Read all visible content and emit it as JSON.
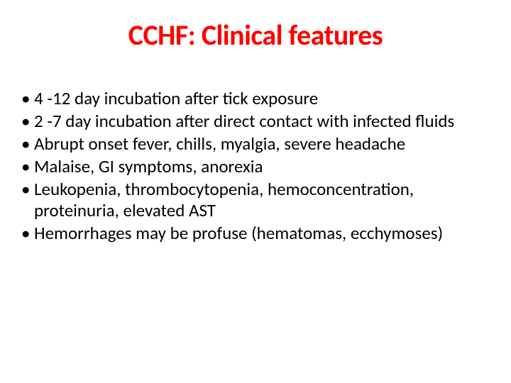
{
  "slide": {
    "title": "CCHF: Clinical features",
    "title_color": "#ff0000",
    "title_fontsize": 40,
    "bullets": [
      "4 -12 day incubation after tick exposure",
      "2 -7 day incubation after direct contact with infected fluids",
      "Abrupt onset fever, chills, myalgia, severe headache",
      "Malaise, GI symptoms, anorexia",
      "Leukopenia, thrombocytopenia, hemoconcentration, proteinuria, elevated AST",
      "Hemorrhages may be profuse (hematomas, ecchymoses)"
    ],
    "bullet_color": "#000000",
    "bullet_fontsize": 25,
    "line_height": 1.2,
    "background_color": "#ffffff"
  }
}
